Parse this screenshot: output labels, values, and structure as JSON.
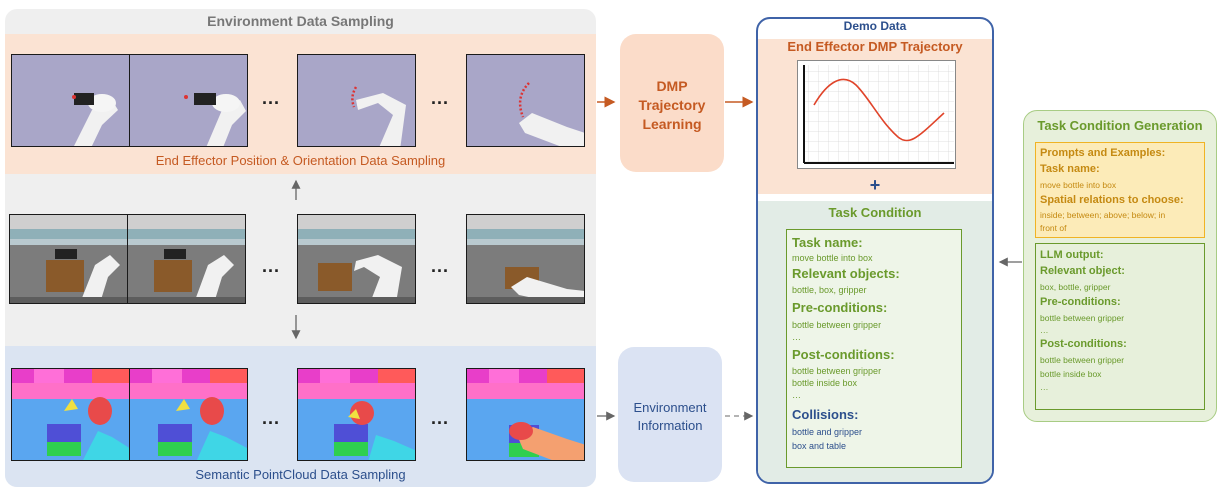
{
  "env_sampling": {
    "title": "Environment Data Sampling",
    "ee_caption": "End Effector Position & Orientation Data Sampling",
    "semantic_caption": "Semantic PointCloud Data Sampling",
    "ellipsis": "..."
  },
  "dmp_box": {
    "line1": "DMP",
    "line2": "Trajectory",
    "line3": "Learning"
  },
  "env_info_box": {
    "line1": "Environment",
    "line2": "Information"
  },
  "demo_data": {
    "title": "Demo Data",
    "ee_title": "End Effector DMP Trajectory",
    "plus": "+",
    "task_condition_title": "Task Condition",
    "items": {
      "task_name_h": "Task name:",
      "task_name_v": "move bottle into box",
      "relevant_h": "Relevant objects:",
      "relevant_v": "bottle, box, gripper",
      "pre_h": "Pre-conditions:",
      "pre_v1": "bottle between gripper",
      "pre_v2": "…",
      "post_h": "Post-conditions:",
      "post_v1": "bottle between gripper",
      "post_v2": "bottle inside box",
      "post_v3": "…",
      "coll_h": "Collisions:",
      "coll_v1": "bottle and gripper",
      "coll_v2": "box and table"
    }
  },
  "task_gen": {
    "title": "Task Condition Generation",
    "prompt_h": "Prompts and Examples:",
    "task_name_h": "Task name:",
    "task_name_v": "move bottle into box",
    "spatial_h": "Spatial relations to choose:",
    "spatial_v1": "inside; between; above; below; in",
    "spatial_v2": "front of",
    "llm_h": "LLM output:",
    "rel_h": "Relevant object:",
    "rel_v": "box, bottle, gripper",
    "pre_h": "Pre-conditions:",
    "pre_v1": "bottle between gripper",
    "pre_v2": "…",
    "post_h": "Post-conditions:",
    "post_v1": "bottle between gripper",
    "post_v2": "bottle inside box",
    "post_v3": "…"
  },
  "colors": {
    "env_bg": "#efefef",
    "ee_band": "#fbe3d3",
    "sem_band": "#dbe4f2",
    "dmp_box": "#fbdcc9",
    "env_info_box": "#dbe3f3",
    "demo_border": "#3f63a8",
    "orange": "#c55a22",
    "task_cond_bg": "#e2ece6",
    "gen_bg": "#e7f0db",
    "prompt_bg": "#fcebb8",
    "prompt_border": "#f0b323"
  }
}
